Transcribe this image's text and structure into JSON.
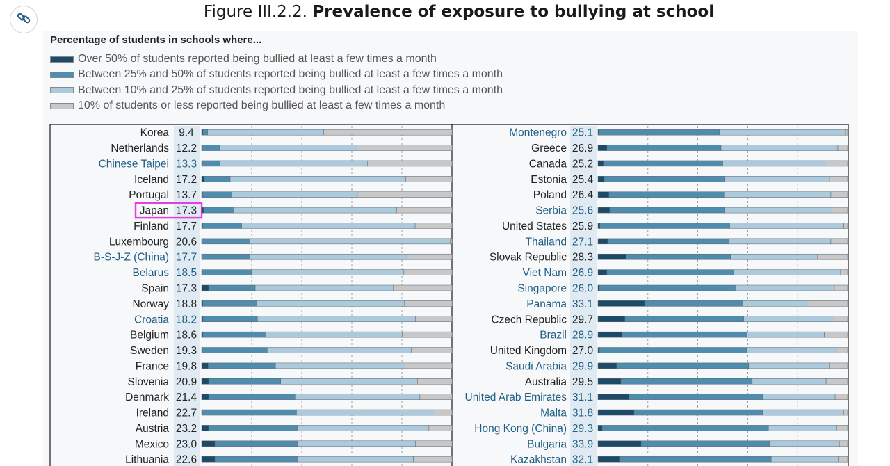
{
  "header": {
    "figure_label": "Figure III.2.2.",
    "title": "Prevalence of exposure to bullying at school",
    "link_icon": "link-icon"
  },
  "chart_data": {
    "type": "bar",
    "stacked": "100%",
    "orientation": "horizontal",
    "subtitle": "Percentage of students in schools where...",
    "legend": [
      {
        "label": "Over 50% of students reported being bullied at least a few times a month",
        "color": "#1d4a66"
      },
      {
        "label": "Between 25% and 50% of students reported being bullied at least a few times a month",
        "color": "#4f8cad"
      },
      {
        "label": "Between 10% and 25% of students reported being bullied at least a few times a month",
        "color": "#adc9dc"
      },
      {
        "label": "10% of students or less reported being bullied at least a few times a month",
        "color": "#c8c8c8"
      }
    ],
    "series_colors": [
      "#1d4a66",
      "#4f8cad",
      "#adc9dc",
      "#c8c8c8"
    ],
    "label_colors": {
      "oecd": "#222222",
      "partner": "#1f5f86"
    },
    "xlim": [
      0,
      100
    ],
    "grid": true,
    "panels": [
      {
        "rows": [
          {
            "country": "Korea",
            "value": "9.4",
            "partner": false,
            "segments": [
              0.5,
              1.9,
              46.4,
              51.2
            ]
          },
          {
            "country": "Netherlands",
            "value": "12.2",
            "partner": false,
            "segments": [
              0.3,
              6.8,
              55.0,
              37.9
            ]
          },
          {
            "country": "Chinese Taipei",
            "value": "13.3",
            "partner": true,
            "segments": [
              0.3,
              7.0,
              58.9,
              33.8
            ]
          },
          {
            "country": "Iceland",
            "value": "17.2",
            "partner": false,
            "segments": [
              1.1,
              10.3,
              70.1,
              18.5
            ]
          },
          {
            "country": "Portugal",
            "value": "13.7",
            "partner": false,
            "segments": [
              0.4,
              11.6,
              50.2,
              37.8
            ]
          },
          {
            "country": "Japan",
            "value": "17.3",
            "partner": false,
            "highlight": true,
            "segments": [
              0.8,
              12.1,
              65.0,
              22.1
            ]
          },
          {
            "country": "Finland",
            "value": "17.7",
            "partner": false,
            "segments": [
              0.4,
              15.6,
              69.3,
              14.7
            ]
          },
          {
            "country": "Luxembourg",
            "value": "20.6",
            "partner": false,
            "segments": [
              0.2,
              19.1,
              80.1,
              0.6
            ]
          },
          {
            "country": "B-S-J-Z (China)",
            "value": "17.7",
            "partner": true,
            "segments": [
              0.2,
              19.1,
              62.7,
              18.0
            ]
          },
          {
            "country": "Belarus",
            "value": "18.5",
            "partner": true,
            "segments": [
              0.3,
              19.6,
              60.9,
              19.2
            ]
          },
          {
            "country": "Spain",
            "value": "17.3",
            "partner": false,
            "segments": [
              2.8,
              18.6,
              55.2,
              23.4
            ]
          },
          {
            "country": "Norway",
            "value": "18.8",
            "partner": false,
            "segments": [
              0.5,
              21.5,
              58.9,
              19.1
            ]
          },
          {
            "country": "Croatia",
            "value": "18.2",
            "partner": true,
            "segments": [
              0.5,
              21.8,
              63.1,
              14.6
            ]
          },
          {
            "country": "Belgium",
            "value": "18.6",
            "partner": false,
            "segments": [
              0.5,
              24.9,
              54.7,
              19.9
            ]
          },
          {
            "country": "Sweden",
            "value": "19.3",
            "partner": false,
            "segments": [
              0.3,
              25.9,
              57.5,
              16.3
            ]
          },
          {
            "country": "France",
            "value": "19.8",
            "partner": false,
            "segments": [
              2.6,
              26.9,
              51.8,
              18.7
            ]
          },
          {
            "country": "Slovenia",
            "value": "20.9",
            "partner": false,
            "segments": [
              2.8,
              28.8,
              54.6,
              13.8
            ]
          },
          {
            "country": "Denmark",
            "value": "21.4",
            "partner": false,
            "segments": [
              2.8,
              34.5,
              49.9,
              12.8
            ]
          },
          {
            "country": "Ireland",
            "value": "22.7",
            "partner": false,
            "segments": [
              0.3,
              37.6,
              55.3,
              6.8
            ]
          },
          {
            "country": "Austria",
            "value": "23.2",
            "partner": false,
            "segments": [
              2.8,
              35.4,
              52.6,
              9.2
            ]
          },
          {
            "country": "Mexico",
            "value": "23.0",
            "partner": false,
            "segments": [
              5.3,
              32.9,
              47.2,
              14.6
            ]
          },
          {
            "country": "Lithuania",
            "value": "22.6",
            "partner": false,
            "segments": [
              5.3,
              32.9,
              46.4,
              15.4
            ]
          }
        ]
      },
      {
        "rows": [
          {
            "country": "Montenegro",
            "value": "25.1",
            "partner": true,
            "segments": [
              0.3,
              48.4,
              50.5,
              0.8
            ]
          },
          {
            "country": "Greece",
            "value": "26.9",
            "partner": false,
            "segments": [
              3.6,
              45.7,
              46.8,
              3.9
            ]
          },
          {
            "country": "Canada",
            "value": "25.2",
            "partner": false,
            "segments": [
              2.2,
              47.8,
              41.8,
              8.2
            ]
          },
          {
            "country": "Estonia",
            "value": "25.4",
            "partner": false,
            "segments": [
              2.5,
              48.1,
              42.2,
              7.2
            ]
          },
          {
            "country": "Poland",
            "value": "26.4",
            "partner": false,
            "segments": [
              4.4,
              46.1,
              42.8,
              6.7
            ]
          },
          {
            "country": "Serbia",
            "value": "25.6",
            "partner": true,
            "segments": [
              4.7,
              45.9,
              43.1,
              6.3
            ]
          },
          {
            "country": "United States",
            "value": "25.9",
            "partner": false,
            "segments": [
              0.8,
              52.0,
              45.7,
              1.5
            ]
          },
          {
            "country": "Thailand",
            "value": "27.1",
            "partner": true,
            "segments": [
              3.9,
              48.7,
              40.7,
              6.7
            ]
          },
          {
            "country": "Slovak Republic",
            "value": "28.3",
            "partner": false,
            "segments": [
              11.3,
              41.9,
              34.8,
              12.0
            ]
          },
          {
            "country": "Viet Nam",
            "value": "26.9",
            "partner": true,
            "segments": [
              3.6,
              50.8,
              42.8,
              2.8
            ]
          },
          {
            "country": "Singapore",
            "value": "26.0",
            "partner": true,
            "segments": [
              0.6,
              54.4,
              39.7,
              5.3
            ]
          },
          {
            "country": "Panama",
            "value": "33.1",
            "partner": true,
            "segments": [
              18.7,
              39.1,
              26.8,
              15.4
            ]
          },
          {
            "country": "Czech Republic",
            "value": "29.7",
            "partner": false,
            "segments": [
              10.8,
              47.6,
              36.2,
              5.4
            ]
          },
          {
            "country": "Brazil",
            "value": "28.9",
            "partner": true,
            "segments": [
              9.7,
              50.1,
              30.9,
              9.3
            ]
          },
          {
            "country": "United Kingdom",
            "value": "27.0",
            "partner": false,
            "segments": [
              0.6,
              59.0,
              35.9,
              4.5
            ]
          },
          {
            "country": "Saudi Arabia",
            "value": "29.9",
            "partner": true,
            "segments": [
              7.5,
              52.9,
              32.3,
              7.3
            ]
          },
          {
            "country": "Australia",
            "value": "29.5",
            "partner": false,
            "segments": [
              9.2,
              52.6,
              29.6,
              8.6
            ]
          },
          {
            "country": "United Arab Emirates",
            "value": "31.1",
            "partner": true,
            "segments": [
              12.5,
              53.5,
              29.0,
              5.0
            ]
          },
          {
            "country": "Malta",
            "value": "31.8",
            "partner": true,
            "segments": [
              14.5,
              51.5,
              32.4,
              1.6
            ]
          },
          {
            "country": "Hong Kong (China)",
            "value": "29.3",
            "partner": true,
            "segments": [
              1.7,
              66.6,
              27.3,
              4.4
            ]
          },
          {
            "country": "Bulgaria",
            "value": "33.9",
            "partner": true,
            "segments": [
              17.3,
              51.5,
              27.9,
              3.3
            ]
          },
          {
            "country": "Kazakhstan",
            "value": "32.1",
            "partner": true,
            "segments": [
              8.6,
              60.8,
              26.9,
              3.7
            ]
          }
        ]
      }
    ]
  }
}
